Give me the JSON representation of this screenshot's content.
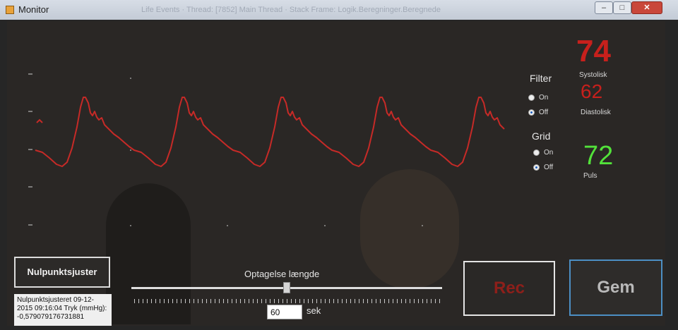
{
  "window": {
    "title": "Monitor",
    "background_tab_text": "Life Events  ·  Thread: [7852] Main Thread  ·  Stack Frame: Logik.Beregninger.Beregnede"
  },
  "graph": {
    "line_color": "#c62a27",
    "pulse_count": 5
  },
  "filter": {
    "label": "Filter",
    "on_label": "On",
    "off_label": "Off",
    "selected": "Off"
  },
  "grid": {
    "label": "Grid",
    "on_label": "On",
    "off_label": "Off",
    "selected": "Off"
  },
  "readings": {
    "systolic": {
      "value": "74",
      "label": "Systolisk",
      "color": "#c7201c"
    },
    "diastolic": {
      "value": "62",
      "label": "Diastolisk",
      "color": "#c7201c"
    },
    "pulse": {
      "value": "72",
      "label": "Puls",
      "color": "#52e23a"
    }
  },
  "controls": {
    "zero_button_label": "Nulpunktsjuster",
    "status_text": "Nulpunktsjusteret 09-12-2015 09:16:04 Tryk (mmHg): -0,579079176731881",
    "recording_length_label": "Optagelse længde",
    "slider_fraction": 0.5,
    "seconds_value": "60",
    "seconds_unit": "sek",
    "rec_label": "Rec",
    "save_label": "Gem"
  }
}
